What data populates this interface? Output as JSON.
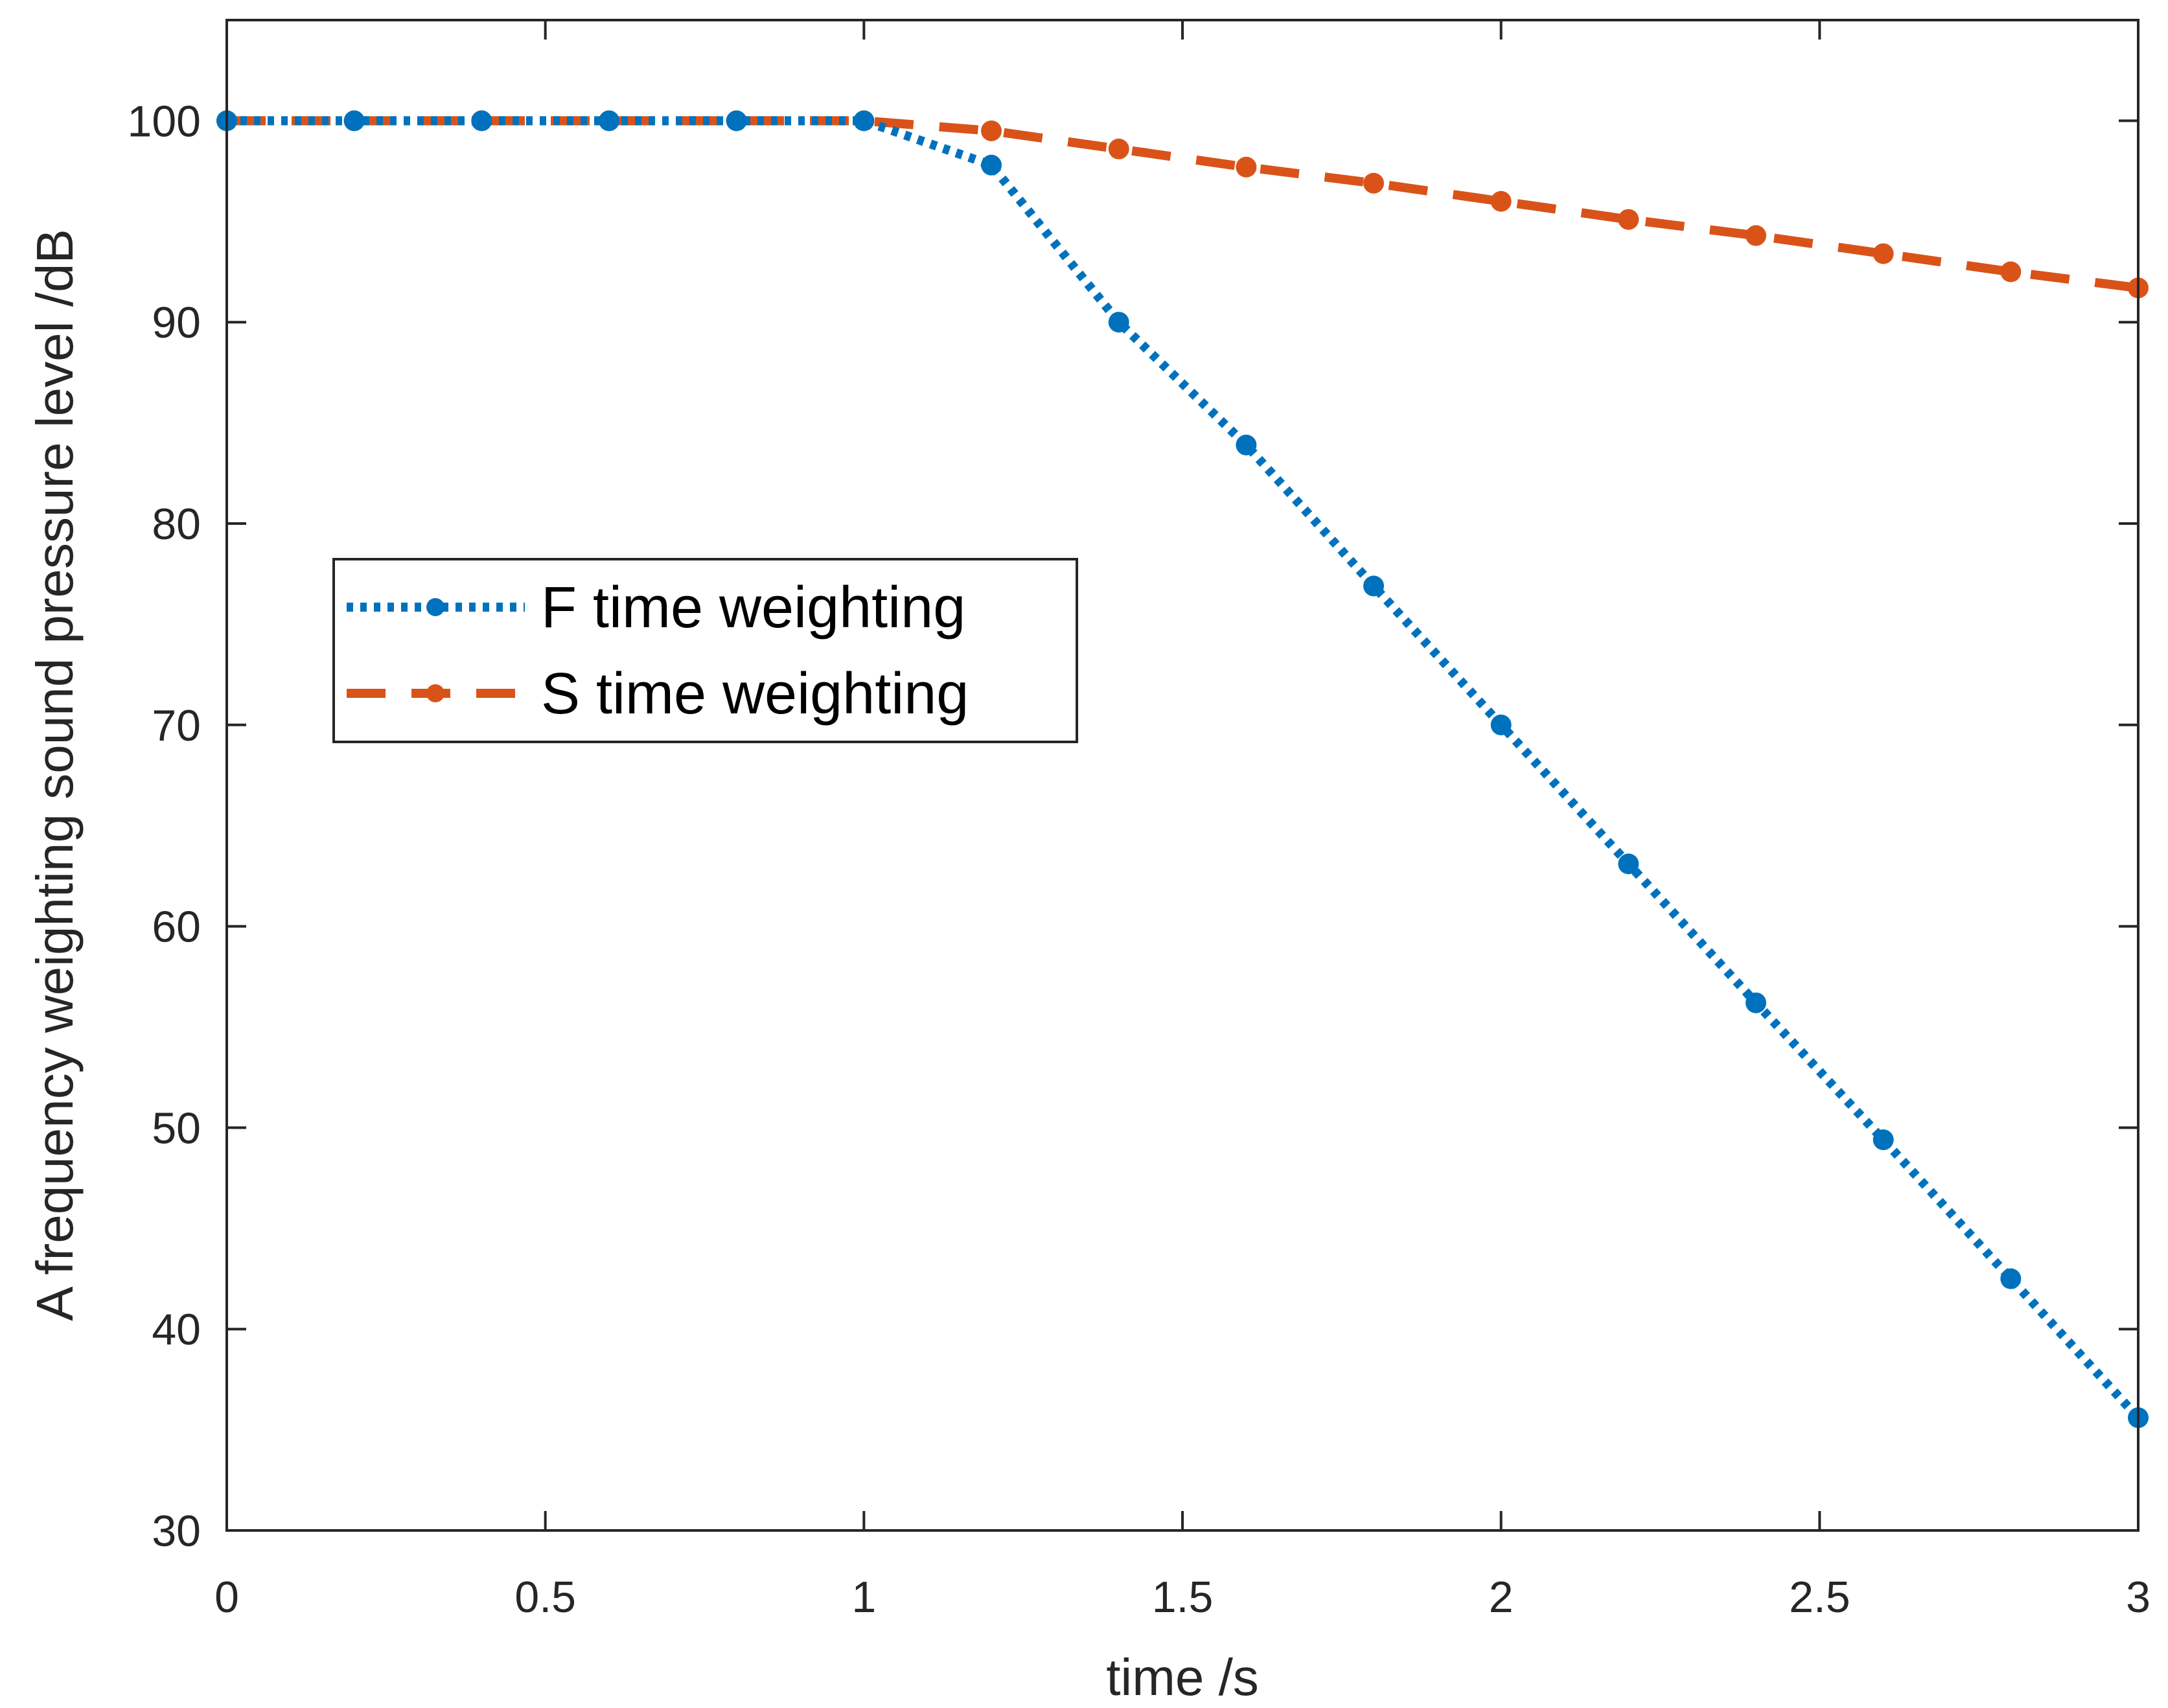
{
  "chart_data": {
    "type": "line",
    "title": "",
    "xlabel": "time /s",
    "ylabel": "A frequency weighting sound pressure level /dB",
    "xlim": [
      0,
      3
    ],
    "ylim": [
      30,
      105
    ],
    "xticks": [
      0,
      0.5,
      1,
      1.5,
      2,
      2.5,
      3
    ],
    "xtick_labels": [
      "0",
      "0.5",
      "1",
      "1.5",
      "2",
      "2.5",
      "3"
    ],
    "yticks": [
      30,
      40,
      50,
      60,
      70,
      80,
      90,
      100
    ],
    "ytick_labels": [
      "30",
      "40",
      "50",
      "60",
      "70",
      "80",
      "90",
      "100"
    ],
    "grid": false,
    "legend_position": "center-left",
    "x": [
      0,
      0.2,
      0.4,
      0.6,
      0.8,
      1.0,
      1.2,
      1.4,
      1.6,
      1.8,
      2.0,
      2.2,
      2.4,
      2.6,
      2.8,
      3.0
    ],
    "series": [
      {
        "name": "F time weighting",
        "color": "#0072BD",
        "line_style": "dotted",
        "values": [
          100,
          100,
          100,
          100,
          100,
          100,
          97.8,
          90.0,
          83.9,
          76.9,
          70.0,
          63.1,
          56.2,
          49.4,
          42.5,
          35.6
        ]
      },
      {
        "name": "S time weighting",
        "color": "#D95319",
        "line_style": "dashed",
        "values": [
          100,
          100,
          100,
          100,
          100,
          100,
          99.5,
          98.6,
          97.7,
          96.9,
          96.0,
          95.1,
          94.3,
          93.4,
          92.5,
          91.7
        ]
      }
    ]
  }
}
